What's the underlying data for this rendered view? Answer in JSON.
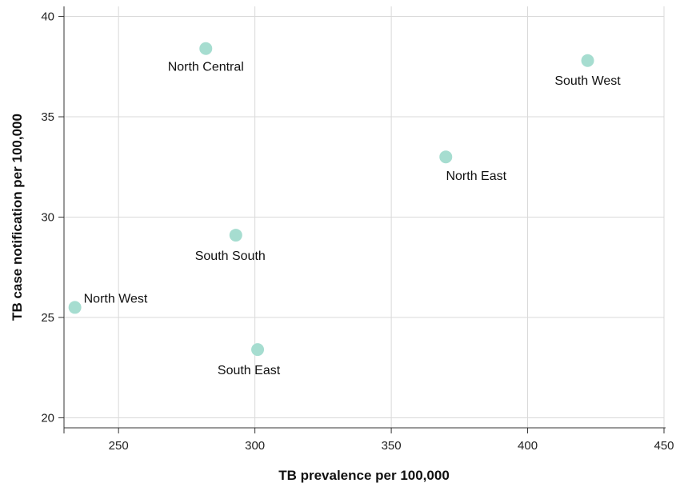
{
  "chart_data": {
    "type": "scatter",
    "title": "",
    "xlabel": "TB prevalence per 100,000",
    "ylabel": "TB case notification per 100,000",
    "xlim": [
      230,
      450
    ],
    "ylim": [
      19.5,
      40.5
    ],
    "xticks": [
      250,
      300,
      350,
      400,
      450
    ],
    "yticks": [
      20,
      25,
      30,
      35,
      40
    ],
    "grid": true,
    "legend": "none",
    "marker_color": "#a6ddd0",
    "points": [
      {
        "label": "North Central",
        "x": 282,
        "y": 38.4
      },
      {
        "label": "South West",
        "x": 422,
        "y": 37.8
      },
      {
        "label": "North East",
        "x": 370,
        "y": 33.0
      },
      {
        "label": "South South",
        "x": 293,
        "y": 29.1
      },
      {
        "label": "North West",
        "x": 234,
        "y": 25.5
      },
      {
        "label": "South East",
        "x": 301,
        "y": 23.4
      }
    ]
  }
}
